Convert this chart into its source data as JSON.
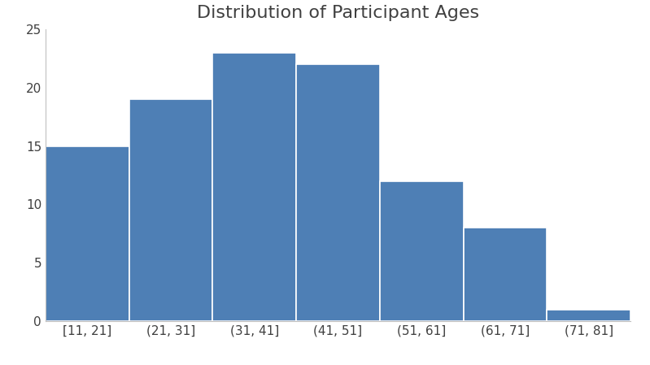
{
  "title": "Distribution of Participant Ages",
  "categories": [
    "[11, 21]",
    "(21, 31]",
    "(31, 41]",
    "(41, 51]",
    "(51, 61]",
    "(61, 71]",
    "(71, 81]"
  ],
  "values": [
    15,
    19,
    23,
    22,
    12,
    8,
    1
  ],
  "bar_color": "#4E7FB5",
  "ylim": [
    0,
    25
  ],
  "yticks": [
    0,
    5,
    10,
    15,
    20,
    25
  ],
  "title_fontsize": 16,
  "tick_fontsize": 11,
  "background_color": "#ffffff",
  "bar_edge_color": "#ffffff",
  "bar_linewidth": 1.2
}
